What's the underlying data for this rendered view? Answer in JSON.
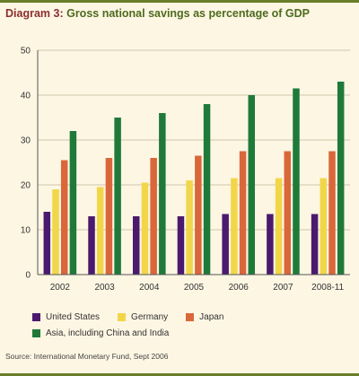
{
  "header": {
    "label": "Diagram 3:",
    "title": "Gross national savings as percentage of GDP"
  },
  "source": "Source: International Monetary Fund, Sept 2006",
  "chart_data": {
    "type": "bar",
    "title": "Gross national savings as percentage of GDP",
    "xlabel": "",
    "ylabel": "",
    "ylim": [
      0,
      50
    ],
    "yticks": [
      0,
      10,
      20,
      30,
      40,
      50
    ],
    "grid": true,
    "legend_position": "bottom",
    "categories": [
      "2002",
      "2003",
      "2004",
      "2005",
      "2006",
      "2007",
      "2008-11"
    ],
    "series": [
      {
        "name": "United States",
        "color": "#4b1a6e",
        "values": [
          14,
          13,
          13,
          13,
          13.5,
          13.5,
          13.5
        ]
      },
      {
        "name": "Germany",
        "color": "#f2d64a",
        "values": [
          19,
          19.5,
          20.5,
          21,
          21.5,
          21.5,
          21.5
        ]
      },
      {
        "name": "Japan",
        "color": "#d9673a",
        "values": [
          25.5,
          26,
          26,
          26.5,
          27.5,
          27.5,
          27.5
        ]
      },
      {
        "name": "Asia, including China and India",
        "color": "#1f7a3a",
        "values": [
          32,
          35,
          36,
          38,
          40,
          41.5,
          43
        ]
      }
    ]
  }
}
